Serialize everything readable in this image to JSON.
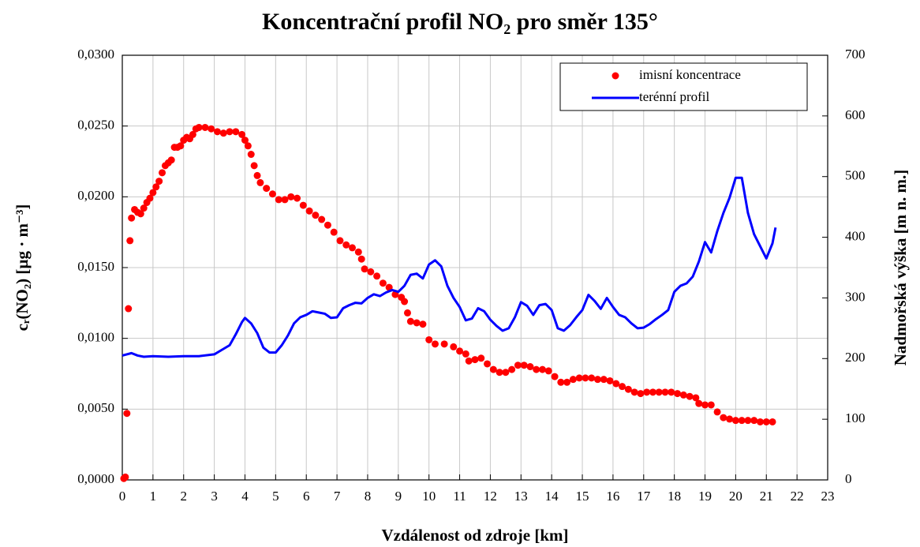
{
  "chart_data": {
    "type": "combo",
    "title": "Koncentrační profil NO₂ pro směr 135°",
    "x_label": "Vzdálenost od zdroje [km]",
    "y_label": "cᵣ(NO₂) [µg · m⁻³]",
    "y2_label": "Nadmořská výška [m n. m.]",
    "xlim": [
      0,
      23
    ],
    "xticks": [
      0,
      1,
      2,
      3,
      4,
      5,
      6,
      7,
      8,
      9,
      10,
      11,
      12,
      13,
      14,
      15,
      16,
      17,
      18,
      19,
      20,
      21,
      22,
      23
    ],
    "ylim": [
      0,
      0.03
    ],
    "yticks": [
      {
        "value": 0,
        "label": "0,0000"
      },
      {
        "value": 0.005,
        "label": "0,0050"
      },
      {
        "value": 0.01,
        "label": "0,0100"
      },
      {
        "value": 0.015,
        "label": "0,0150"
      },
      {
        "value": 0.02,
        "label": "0,0200"
      },
      {
        "value": 0.025,
        "label": "0,0250"
      },
      {
        "value": 0.03,
        "label": "0,0300"
      }
    ],
    "y2lim": [
      0,
      700
    ],
    "y2ticks": [
      0,
      100,
      200,
      300,
      400,
      500,
      600,
      700
    ],
    "grid": true,
    "legend": "upper right",
    "series": [
      {
        "name": "imisní koncentrace",
        "color": "#ff0000",
        "type": "scatter",
        "x": [
          0.05,
          0.1,
          0.15,
          0.2,
          0.25,
          0.3,
          0.4,
          0.5,
          0.6,
          0.7,
          0.8,
          0.9,
          1.0,
          1.1,
          1.2,
          1.3,
          1.4,
          1.5,
          1.6,
          1.7,
          1.8,
          1.9,
          2.0,
          2.1,
          2.2,
          2.3,
          2.4,
          2.5,
          2.7,
          2.9,
          3.1,
          3.3,
          3.5,
          3.7,
          3.9,
          4.0,
          4.1,
          4.2,
          4.3,
          4.4,
          4.5,
          4.7,
          4.9,
          5.1,
          5.3,
          5.5,
          5.7,
          5.9,
          6.1,
          6.3,
          6.5,
          6.7,
          6.9,
          7.1,
          7.3,
          7.5,
          7.7,
          7.8,
          7.9,
          8.1,
          8.3,
          8.5,
          8.7,
          8.9,
          9.1,
          9.2,
          9.3,
          9.4,
          9.6,
          9.8,
          10.0,
          10.2,
          10.5,
          10.8,
          11.0,
          11.2,
          11.3,
          11.5,
          11.7,
          11.9,
          12.1,
          12.3,
          12.5,
          12.7,
          12.9,
          13.1,
          13.3,
          13.5,
          13.7,
          13.9,
          14.1,
          14.3,
          14.5,
          14.7,
          14.9,
          15.1,
          15.3,
          15.5,
          15.7,
          15.9,
          16.1,
          16.3,
          16.5,
          16.7,
          16.9,
          17.1,
          17.3,
          17.5,
          17.7,
          17.9,
          18.1,
          18.3,
          18.5,
          18.7,
          18.8,
          19.0,
          19.2,
          19.4,
          19.6,
          19.8,
          20.0,
          20.2,
          20.4,
          20.6,
          20.8,
          21.0,
          21.2
        ],
        "values": [
          0.0001,
          0.0002,
          0.0047,
          0.0121,
          0.0169,
          0.0185,
          0.0191,
          0.0189,
          0.0188,
          0.0192,
          0.0196,
          0.0199,
          0.0203,
          0.0207,
          0.0211,
          0.0217,
          0.0222,
          0.0224,
          0.0226,
          0.0235,
          0.0235,
          0.0236,
          0.024,
          0.0242,
          0.0241,
          0.0244,
          0.0248,
          0.0249,
          0.0249,
          0.0248,
          0.0246,
          0.0245,
          0.0246,
          0.0246,
          0.0244,
          0.024,
          0.0236,
          0.023,
          0.0222,
          0.0215,
          0.021,
          0.0206,
          0.0202,
          0.0198,
          0.0198,
          0.02,
          0.0199,
          0.0194,
          0.019,
          0.0187,
          0.0184,
          0.018,
          0.0175,
          0.0169,
          0.0166,
          0.0164,
          0.0161,
          0.0156,
          0.0149,
          0.0147,
          0.0144,
          0.0139,
          0.0136,
          0.0131,
          0.0129,
          0.0126,
          0.0118,
          0.0112,
          0.0111,
          0.011,
          0.0099,
          0.0096,
          0.0096,
          0.0094,
          0.0091,
          0.0089,
          0.0084,
          0.0085,
          0.0086,
          0.0082,
          0.0078,
          0.0076,
          0.0076,
          0.0078,
          0.0081,
          0.0081,
          0.008,
          0.0078,
          0.0078,
          0.0077,
          0.0073,
          0.0069,
          0.0069,
          0.0071,
          0.0072,
          0.0072,
          0.0072,
          0.0071,
          0.0071,
          0.007,
          0.0068,
          0.0066,
          0.0064,
          0.0062,
          0.0061,
          0.0062,
          0.0062,
          0.0062,
          0.0062,
          0.0062,
          0.0061,
          0.006,
          0.0059,
          0.0058,
          0.0054,
          0.0053,
          0.0053,
          0.0048,
          0.0044,
          0.0043,
          0.0042,
          0.0042,
          0.0042,
          0.0042,
          0.0041,
          0.0041,
          0.0041
        ]
      },
      {
        "name": "terénní profil",
        "color": "#0000ff",
        "type": "line",
        "axis": "y2",
        "x": [
          0,
          0.3,
          0.5,
          0.7,
          1,
          1.5,
          2,
          2.5,
          3,
          3.3,
          3.5,
          3.7,
          3.9,
          4.0,
          4.2,
          4.4,
          4.6,
          4.8,
          5.0,
          5.2,
          5.4,
          5.6,
          5.8,
          6.0,
          6.2,
          6.4,
          6.6,
          6.8,
          7.0,
          7.2,
          7.4,
          7.6,
          7.8,
          8.0,
          8.2,
          8.4,
          8.6,
          8.8,
          9.0,
          9.2,
          9.4,
          9.6,
          9.8,
          10.0,
          10.2,
          10.4,
          10.6,
          10.8,
          11.0,
          11.2,
          11.4,
          11.6,
          11.8,
          12.0,
          12.2,
          12.4,
          12.6,
          12.8,
          13.0,
          13.2,
          13.4,
          13.6,
          13.8,
          14.0,
          14.2,
          14.4,
          14.6,
          14.8,
          15.0,
          15.2,
          15.4,
          15.6,
          15.8,
          16.0,
          16.2,
          16.4,
          16.6,
          16.8,
          17.0,
          17.2,
          17.4,
          17.6,
          17.8,
          18.0,
          18.2,
          18.4,
          18.6,
          18.8,
          19.0,
          19.2,
          19.4,
          19.6,
          19.8,
          20.0,
          20.2,
          20.4,
          20.6,
          20.8,
          21.0,
          21.2,
          21.3
        ],
        "values": [
          205,
          209,
          205,
          203,
          204,
          203,
          204,
          204,
          207,
          216,
          222,
          240,
          260,
          267,
          258,
          242,
          218,
          210,
          210,
          222,
          238,
          258,
          268,
          272,
          278,
          276,
          274,
          267,
          268,
          283,
          288,
          292,
          291,
          300,
          306,
          303,
          309,
          313,
          310,
          320,
          338,
          340,
          332,
          355,
          362,
          352,
          320,
          300,
          285,
          263,
          266,
          283,
          278,
          264,
          254,
          246,
          250,
          268,
          293,
          287,
          272,
          288,
          290,
          280,
          250,
          246,
          255,
          268,
          280,
          305,
          295,
          282,
          300,
          285,
          272,
          268,
          258,
          250,
          251,
          257,
          265,
          272,
          280,
          310,
          320,
          324,
          335,
          360,
          392,
          375,
          410,
          440,
          465,
          498,
          498,
          440,
          405,
          385,
          365,
          390,
          416
        ]
      }
    ]
  }
}
